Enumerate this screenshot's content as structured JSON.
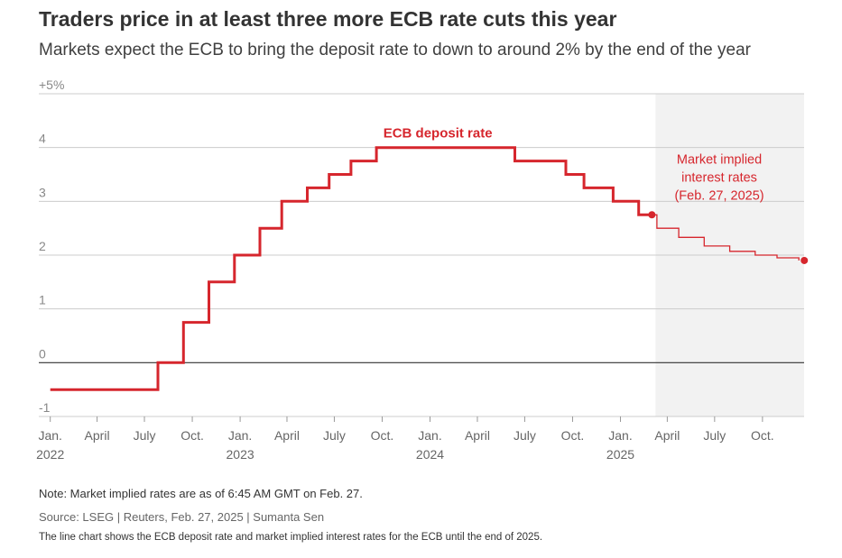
{
  "header": {
    "title": "Traders price in at least three more ECB rate cuts this year",
    "subtitle": "Markets expect the ECB to bring the deposit rate to down to around 2% by the end of the year"
  },
  "footer": {
    "note": "Note: Market implied rates are as of 6:45 AM GMT on Feb. 27.",
    "source": "Source: LSEG | Reuters, Feb. 27, 2025 | Sumanta Sen",
    "alt_text": "The line chart shows the ECB deposit rate and market implied interest rates for the ECB until the end of 2025."
  },
  "colors": {
    "series": "#d6262d",
    "forecast_bg": "#f2f2f2",
    "grid": "#cccccc",
    "zero_line": "#333333"
  },
  "chart_data": {
    "type": "line",
    "ylim": [
      -1,
      5
    ],
    "xlim": [
      "2021-12-10",
      "2025-12-20"
    ],
    "y_ticks": [
      {
        "value": 5,
        "label": "+5%"
      },
      {
        "value": 4,
        "label": "4"
      },
      {
        "value": 3,
        "label": "3"
      },
      {
        "value": 2,
        "label": "2"
      },
      {
        "value": 1,
        "label": "1"
      },
      {
        "value": 0,
        "label": "0"
      },
      {
        "value": -1,
        "label": "-1"
      }
    ],
    "x_ticks": [
      {
        "date": "2022-01-01",
        "label": "Jan.",
        "year": "2022"
      },
      {
        "date": "2022-04-01",
        "label": "April",
        "year": ""
      },
      {
        "date": "2022-07-01",
        "label": "July",
        "year": ""
      },
      {
        "date": "2022-10-01",
        "label": "Oct.",
        "year": ""
      },
      {
        "date": "2023-01-01",
        "label": "Jan.",
        "year": "2023"
      },
      {
        "date": "2023-04-01",
        "label": "April",
        "year": ""
      },
      {
        "date": "2023-07-01",
        "label": "July",
        "year": ""
      },
      {
        "date": "2023-10-01",
        "label": "Oct.",
        "year": ""
      },
      {
        "date": "2024-01-01",
        "label": "Jan.",
        "year": "2024"
      },
      {
        "date": "2024-04-01",
        "label": "April",
        "year": ""
      },
      {
        "date": "2024-07-01",
        "label": "July",
        "year": ""
      },
      {
        "date": "2024-10-01",
        "label": "Oct.",
        "year": ""
      },
      {
        "date": "2025-01-01",
        "label": "Jan.",
        "year": "2025"
      },
      {
        "date": "2025-04-01",
        "label": "April",
        "year": ""
      },
      {
        "date": "2025-07-01",
        "label": "July",
        "year": ""
      },
      {
        "date": "2025-10-01",
        "label": "Oct.",
        "year": ""
      }
    ],
    "forecast_start": "2025-02-27",
    "series": [
      {
        "name": "ECB deposit rate",
        "step": true,
        "points": [
          {
            "date": "2022-01-01",
            "value": -0.5
          },
          {
            "date": "2022-07-27",
            "value": 0.0
          },
          {
            "date": "2022-09-14",
            "value": 0.75
          },
          {
            "date": "2022-11-02",
            "value": 1.5
          },
          {
            "date": "2022-12-21",
            "value": 2.0
          },
          {
            "date": "2023-02-08",
            "value": 2.5
          },
          {
            "date": "2023-03-22",
            "value": 3.0
          },
          {
            "date": "2023-05-10",
            "value": 3.25
          },
          {
            "date": "2023-06-21",
            "value": 3.5
          },
          {
            "date": "2023-08-02",
            "value": 3.75
          },
          {
            "date": "2023-09-20",
            "value": 4.0
          },
          {
            "date": "2024-06-12",
            "value": 3.75
          },
          {
            "date": "2024-09-18",
            "value": 3.5
          },
          {
            "date": "2024-10-23",
            "value": 3.25
          },
          {
            "date": "2024-12-18",
            "value": 3.0
          },
          {
            "date": "2025-02-05",
            "value": 2.75
          },
          {
            "date": "2025-02-27",
            "value": 2.75
          }
        ]
      },
      {
        "name": "Market implied interest rates",
        "step": true,
        "points": [
          {
            "date": "2025-02-27",
            "value": 2.75
          },
          {
            "date": "2025-03-12",
            "value": 2.5
          },
          {
            "date": "2025-04-23",
            "value": 2.33
          },
          {
            "date": "2025-06-11",
            "value": 2.17
          },
          {
            "date": "2025-07-30",
            "value": 2.07
          },
          {
            "date": "2025-09-17",
            "value": 2.0
          },
          {
            "date": "2025-10-29",
            "value": 1.95
          },
          {
            "date": "2025-12-10",
            "value": 1.9
          }
        ]
      }
    ],
    "labels": {
      "deposit": "ECB deposit rate",
      "forecast_lines": [
        "Market implied",
        "interest rates",
        "(Feb. 27, 2025)"
      ]
    }
  }
}
